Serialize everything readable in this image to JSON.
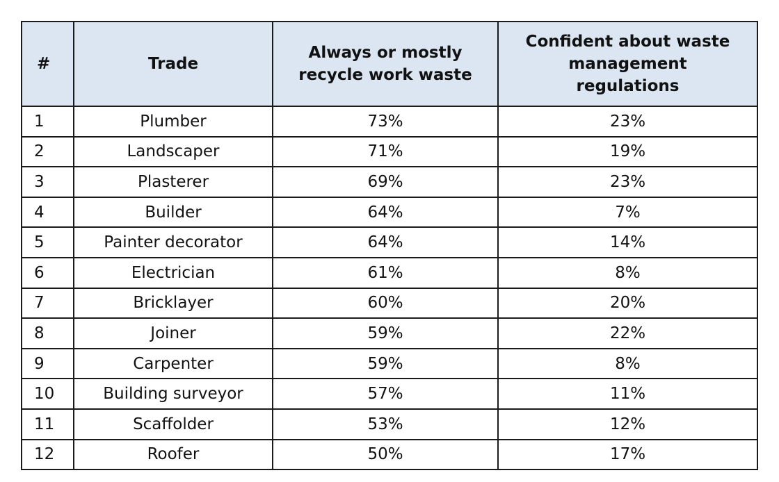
{
  "chart_data": {
    "type": "table",
    "columns": [
      "#",
      "Trade",
      "Always or mostly recycle work waste",
      "Confident about waste management regulations"
    ],
    "rows": [
      {
        "num": "1",
        "trade": "Plumber",
        "recycle": "73%",
        "confident": "23%"
      },
      {
        "num": "2",
        "trade": "Landscaper",
        "recycle": "71%",
        "confident": "19%"
      },
      {
        "num": "3",
        "trade": "Plasterer",
        "recycle": "69%",
        "confident": "23%"
      },
      {
        "num": "4",
        "trade": "Builder",
        "recycle": "64%",
        "confident": "7%"
      },
      {
        "num": "5",
        "trade": "Painter decorator",
        "recycle": "64%",
        "confident": "14%"
      },
      {
        "num": "6",
        "trade": "Electrician",
        "recycle": "61%",
        "confident": "8%"
      },
      {
        "num": "7",
        "trade": "Bricklayer",
        "recycle": "60%",
        "confident": "20%"
      },
      {
        "num": "8",
        "trade": "Joiner",
        "recycle": "59%",
        "confident": "22%"
      },
      {
        "num": "9",
        "trade": "Carpenter",
        "recycle": "59%",
        "confident": "8%"
      },
      {
        "num": "10",
        "trade": "Building surveyor",
        "recycle": "57%",
        "confident": "11%"
      },
      {
        "num": "11",
        "trade": "Scaffolder",
        "recycle": "53%",
        "confident": "12%"
      },
      {
        "num": "12",
        "trade": "Roofer",
        "recycle": "50%",
        "confident": "17%"
      }
    ]
  },
  "colors": {
    "header_background": "#dce6f2",
    "border": "#1a1a1a"
  }
}
